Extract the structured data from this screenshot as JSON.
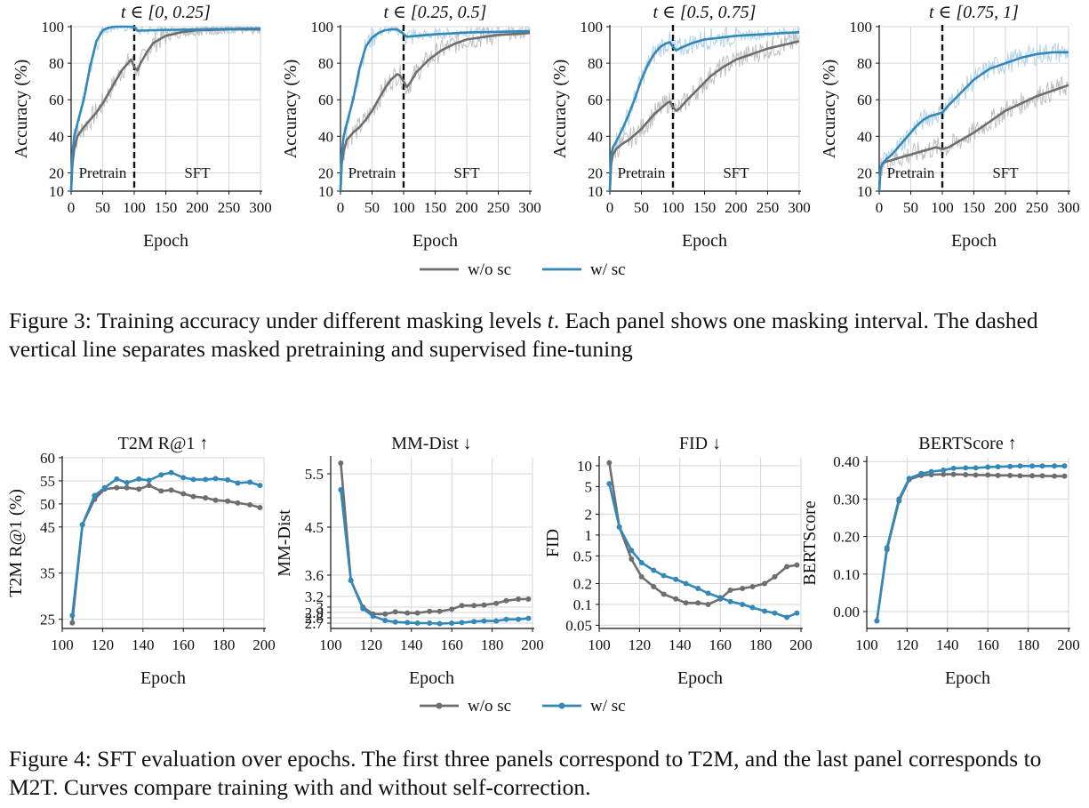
{
  "legend": {
    "wo_label": "w/o sc",
    "w_label": "w/ sc"
  },
  "colors": {
    "wo": "#6e6e6e",
    "w": "#3388b8",
    "band_wo": "#b5b5b5",
    "band_w": "#a6cde6",
    "grid": "#d6d6d6",
    "divider": "#111111"
  },
  "figure3": {
    "caption_label": "Figure 3:",
    "caption_text": "Training accuracy under different masking levels",
    "caption_symbol": "t",
    "caption_rest": ". Each panel shows one masking interval. The dashed vertical line separates masked pretraining and supervised fine-tuning",
    "phase_labels": {
      "left": "Pretrain",
      "right": "SFT"
    },
    "panel_titles": [
      "t ∈ [0, 0.25]",
      "t ∈ [0.25, 0.5]",
      "t ∈ [0.5, 0.75]",
      "t ∈ [0.75, 1]"
    ]
  },
  "figure4": {
    "caption_label": "Figure 4:",
    "caption_text": "SFT evaluation over epochs. The first three panels correspond to T2M, and the last panel corresponds to M2T. Curves compare training with and without self-correction."
  },
  "chart_data": [
    {
      "type": "line",
      "title": "t ∈ [0, 0.25]",
      "xlabel": "Epoch",
      "ylabel": "Accuracy (%)",
      "xlim": [
        0,
        300
      ],
      "ylim": [
        10,
        100
      ],
      "xticks": [
        0,
        50,
        100,
        150,
        200,
        250,
        300
      ],
      "yticks": [
        10,
        20,
        40,
        60,
        80,
        100
      ],
      "divider_x": 100,
      "grid": true,
      "series": [
        {
          "name": "w/o sc",
          "x": [
            0,
            2,
            5,
            10,
            20,
            30,
            40,
            50,
            60,
            70,
            80,
            90,
            95,
            100,
            105,
            110,
            120,
            130,
            150,
            175,
            200,
            250,
            300
          ],
          "y": [
            10,
            25,
            33,
            40,
            45,
            49,
            53,
            58,
            64,
            70,
            76,
            80,
            82,
            78,
            76,
            80,
            86,
            91,
            95,
            97,
            98,
            98.5,
            98.5
          ]
        },
        {
          "name": "w/ sc",
          "x": [
            0,
            2,
            5,
            10,
            20,
            30,
            40,
            50,
            60,
            70,
            80,
            90,
            100,
            105,
            150,
            200,
            250,
            300
          ],
          "y": [
            10,
            30,
            40,
            47,
            60,
            78,
            92,
            98,
            99.5,
            100,
            100,
            100,
            99.8,
            97.8,
            98.2,
            98.5,
            98.8,
            99
          ]
        }
      ]
    },
    {
      "type": "line",
      "title": "t ∈ [0.25, 0.5]",
      "xlabel": "Epoch",
      "ylabel": "Accuracy (%)",
      "xlim": [
        0,
        300
      ],
      "ylim": [
        10,
        100
      ],
      "xticks": [
        0,
        50,
        100,
        150,
        200,
        250,
        300
      ],
      "yticks": [
        10,
        20,
        40,
        60,
        80,
        100
      ],
      "divider_x": 100,
      "grid": true,
      "series": [
        {
          "name": "w/o sc",
          "x": [
            0,
            2,
            5,
            10,
            20,
            30,
            40,
            50,
            60,
            70,
            80,
            90,
            95,
            100,
            105,
            110,
            120,
            140,
            160,
            180,
            200,
            250,
            300
          ],
          "y": [
            10,
            25,
            32,
            38,
            42,
            45,
            49,
            54,
            60,
            66,
            71,
            74,
            73,
            70,
            67,
            69,
            75,
            82,
            87,
            90.5,
            93,
            95.5,
            96.5
          ]
        },
        {
          "name": "w/ sc",
          "x": [
            0,
            2,
            5,
            10,
            20,
            30,
            40,
            50,
            60,
            70,
            80,
            90,
            100,
            105,
            150,
            200,
            250,
            300
          ],
          "y": [
            10,
            30,
            40,
            47,
            60,
            77,
            89,
            94,
            96.5,
            98,
            98.5,
            98.5,
            96,
            94.5,
            95.8,
            96.8,
            97.2,
            97.5
          ]
        }
      ]
    },
    {
      "type": "line",
      "title": "t ∈ [0.5, 0.75]",
      "xlabel": "Epoch",
      "ylabel": "Accuracy (%)",
      "xlim": [
        0,
        300
      ],
      "ylim": [
        10,
        100
      ],
      "xticks": [
        0,
        50,
        100,
        150,
        200,
        250,
        300
      ],
      "yticks": [
        10,
        20,
        40,
        60,
        80,
        100
      ],
      "divider_x": 100,
      "grid": true,
      "series": [
        {
          "name": "w/o sc",
          "x": [
            0,
            2,
            5,
            10,
            20,
            30,
            40,
            50,
            60,
            70,
            80,
            90,
            95,
            100,
            105,
            110,
            120,
            140,
            160,
            180,
            200,
            250,
            300
          ],
          "y": [
            10,
            25,
            30,
            33,
            36,
            38,
            41,
            44,
            48,
            52,
            55,
            58,
            59,
            56,
            54,
            55,
            59,
            66,
            73,
            78,
            82,
            88,
            92
          ]
        },
        {
          "name": "w/ sc",
          "x": [
            0,
            2,
            5,
            10,
            20,
            30,
            40,
            50,
            60,
            70,
            80,
            90,
            95,
            100,
            105,
            110,
            130,
            150,
            200,
            250,
            300
          ],
          "y": [
            10,
            30,
            34,
            37,
            44,
            52,
            61,
            71,
            79,
            85,
            89,
            91,
            91.5,
            89,
            87,
            88,
            91,
            93,
            95,
            96,
            97
          ]
        }
      ]
    },
    {
      "type": "line",
      "title": "t ∈ [0.75, 1]",
      "xlabel": "Epoch",
      "ylabel": "Accuracy (%)",
      "xlim": [
        0,
        300
      ],
      "ylim": [
        10,
        100
      ],
      "xticks": [
        0,
        50,
        100,
        150,
        200,
        250,
        300
      ],
      "yticks": [
        10,
        20,
        40,
        60,
        80,
        100
      ],
      "divider_x": 100,
      "grid": true,
      "series": [
        {
          "name": "w/o sc",
          "x": [
            0,
            2,
            5,
            10,
            20,
            30,
            40,
            50,
            60,
            70,
            80,
            90,
            95,
            100,
            110,
            130,
            150,
            175,
            200,
            250,
            300
          ],
          "y": [
            10,
            22,
            25,
            26,
            27,
            28,
            29,
            30,
            31,
            32,
            33,
            34,
            33.5,
            33,
            34,
            38,
            42,
            48,
            54,
            62,
            68
          ]
        },
        {
          "name": "w/ sc",
          "x": [
            0,
            2,
            5,
            10,
            20,
            30,
            40,
            50,
            60,
            70,
            80,
            90,
            100,
            110,
            130,
            150,
            175,
            200,
            225,
            250,
            275,
            300
          ],
          "y": [
            10,
            22,
            25,
            27,
            30,
            34,
            38,
            42,
            46,
            49,
            51,
            52,
            53,
            57,
            64,
            71,
            77,
            80,
            83,
            85,
            86,
            86
          ]
        }
      ]
    },
    {
      "type": "line",
      "title": "T2M R@1 ↑",
      "xlabel": "Epoch",
      "ylabel": "T2M R@1 (%)",
      "xlim": [
        100,
        200
      ],
      "ylim": [
        23,
        60
      ],
      "xticks": [
        100,
        120,
        140,
        160,
        180,
        200
      ],
      "yticks": [
        25,
        35,
        45,
        50,
        55,
        60
      ],
      "grid": true,
      "markers": true,
      "series": [
        {
          "name": "w/o sc",
          "x": [
            105,
            110,
            116,
            121,
            127,
            132,
            138,
            143,
            149,
            154,
            160,
            165,
            171,
            176,
            182,
            187,
            193,
            198
          ],
          "y": [
            24.2,
            45.5,
            51,
            53.2,
            53.5,
            53.5,
            53.2,
            54,
            52.8,
            53,
            52.2,
            51.6,
            51.3,
            50.8,
            50.6,
            50.2,
            49.8,
            49.2
          ]
        },
        {
          "name": "w/ sc",
          "x": [
            105,
            110,
            116,
            121,
            127,
            132,
            138,
            143,
            149,
            154,
            160,
            165,
            171,
            176,
            182,
            187,
            193,
            198
          ],
          "y": [
            25.8,
            45.5,
            51.8,
            53.5,
            55.4,
            54.6,
            55.4,
            55.1,
            56.3,
            56.8,
            55.7,
            55.3,
            55.3,
            55.5,
            55.2,
            54.5,
            54.7,
            54
          ]
        }
      ]
    },
    {
      "type": "line",
      "title": "MM-Dist ↓",
      "xlabel": "Epoch",
      "ylabel": "MM-Dist",
      "xlim": [
        100,
        200
      ],
      "ylim": [
        2.6,
        5.8
      ],
      "xticks": [
        100,
        120,
        140,
        160,
        180,
        200
      ],
      "yticks": [
        2.7,
        2.8,
        2.9,
        3.0,
        3.2,
        3.6,
        4.5,
        5.5
      ],
      "grid": true,
      "markers": true,
      "series": [
        {
          "name": "w/o sc",
          "x": [
            105,
            110,
            116,
            121,
            127,
            132,
            138,
            143,
            149,
            154,
            160,
            165,
            171,
            176,
            182,
            187,
            193,
            198
          ],
          "y": [
            5.7,
            3.5,
            3.0,
            2.87,
            2.87,
            2.91,
            2.89,
            2.89,
            2.92,
            2.92,
            2.96,
            3.03,
            3.03,
            3.04,
            3.07,
            3.12,
            3.15,
            3.15
          ]
        },
        {
          "name": "w/ sc",
          "x": [
            105,
            110,
            116,
            121,
            127,
            132,
            138,
            143,
            149,
            154,
            160,
            165,
            171,
            176,
            182,
            187,
            193,
            198
          ],
          "y": [
            5.2,
            3.5,
            2.97,
            2.83,
            2.75,
            2.72,
            2.71,
            2.7,
            2.7,
            2.69,
            2.7,
            2.71,
            2.73,
            2.74,
            2.74,
            2.77,
            2.77,
            2.79
          ]
        }
      ]
    },
    {
      "type": "line",
      "title": "FID ↓",
      "xlabel": "Epoch",
      "ylabel": "FID",
      "yscale": "log",
      "xlim": [
        100,
        200
      ],
      "ylim": [
        0.045,
        13
      ],
      "xticks": [
        100,
        120,
        140,
        160,
        180,
        200
      ],
      "yticks": [
        0.05,
        0.1,
        0.2,
        0.5,
        1,
        2,
        5,
        10
      ],
      "grid": true,
      "markers": true,
      "series": [
        {
          "name": "w/o sc",
          "x": [
            105,
            110,
            116,
            121,
            127,
            132,
            138,
            143,
            149,
            154,
            160,
            165,
            171,
            176,
            182,
            187,
            193,
            198
          ],
          "y": [
            11,
            1.3,
            0.45,
            0.25,
            0.18,
            0.14,
            0.12,
            0.105,
            0.105,
            0.1,
            0.12,
            0.16,
            0.17,
            0.18,
            0.2,
            0.25,
            0.35,
            0.37
          ]
        },
        {
          "name": "w/ sc",
          "x": [
            105,
            110,
            116,
            121,
            127,
            132,
            138,
            143,
            149,
            154,
            160,
            165,
            171,
            176,
            182,
            187,
            193,
            198
          ],
          "y": [
            5.5,
            1.3,
            0.6,
            0.4,
            0.31,
            0.26,
            0.23,
            0.2,
            0.17,
            0.145,
            0.125,
            0.11,
            0.1,
            0.09,
            0.08,
            0.075,
            0.065,
            0.075
          ]
        }
      ]
    },
    {
      "type": "line",
      "title": "BERTScore ↑",
      "xlabel": "Epoch",
      "ylabel": "BERTScore",
      "xlim": [
        100,
        200
      ],
      "ylim": [
        -0.045,
        0.41
      ],
      "xticks": [
        100,
        120,
        140,
        160,
        180,
        200
      ],
      "yticks": [
        0.0,
        0.1,
        0.2,
        0.3,
        0.4
      ],
      "ytick_labels": [
        "0.00",
        "0.10",
        "0.20",
        "0.30",
        "0.40"
      ],
      "grid": true,
      "markers": true,
      "series": [
        {
          "name": "w/o sc",
          "x": [
            105,
            110,
            116,
            121,
            127,
            132,
            138,
            143,
            149,
            154,
            160,
            165,
            171,
            176,
            182,
            187,
            193,
            198
          ],
          "y": [
            -0.025,
            0.165,
            0.295,
            0.352,
            0.363,
            0.365,
            0.366,
            0.366,
            0.365,
            0.364,
            0.364,
            0.363,
            0.363,
            0.362,
            0.362,
            0.362,
            0.361,
            0.361
          ]
        },
        {
          "name": "w/ sc",
          "x": [
            105,
            110,
            116,
            121,
            127,
            132,
            138,
            143,
            149,
            154,
            160,
            165,
            171,
            176,
            182,
            187,
            193,
            198
          ],
          "y": [
            -0.025,
            0.17,
            0.3,
            0.355,
            0.368,
            0.373,
            0.377,
            0.382,
            0.383,
            0.383,
            0.385,
            0.386,
            0.387,
            0.388,
            0.388,
            0.388,
            0.388,
            0.388
          ]
        }
      ]
    }
  ]
}
